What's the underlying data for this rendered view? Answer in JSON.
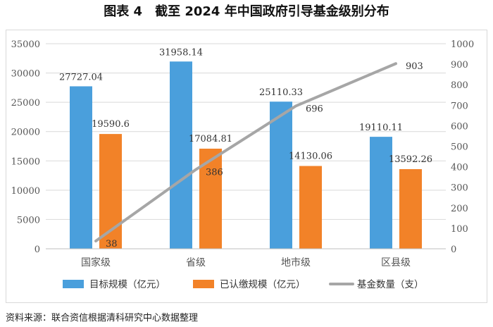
{
  "colors": {
    "bar1": "#4A9FDC",
    "bar2": "#F28228",
    "line": "#A6A6A6",
    "grid": "#D9D9D9",
    "axis": "#BFBFBF"
  },
  "chart_data": {
    "type": "bar",
    "title": "图表 4　截至 2024 年中国政府引导基金级别分布",
    "categories": [
      "国家级",
      "省级",
      "地市级",
      "区县级"
    ],
    "series": [
      {
        "name": "目标规模（亿元）",
        "kind": "bar",
        "axis": "left",
        "values": [
          27727.04,
          31958.14,
          25110.33,
          19110.11
        ],
        "labels": [
          "27727.04",
          "31958.14",
          "25110.33",
          "19110.11"
        ]
      },
      {
        "name": "已认缴规模（亿元）",
        "kind": "bar",
        "axis": "left",
        "values": [
          19590.6,
          17084.81,
          14130.06,
          13592.26
        ],
        "labels": [
          "19590.6",
          "17084.81",
          "14130.06",
          "13592.26"
        ]
      },
      {
        "name": "基金数量（支）",
        "kind": "line",
        "axis": "right",
        "values": [
          38,
          386,
          696,
          903
        ],
        "labels": [
          "38",
          "386",
          "696",
          "903"
        ]
      }
    ],
    "y_left": {
      "min": 0,
      "max": 35000,
      "ticks": [
        "0",
        "5000",
        "10000",
        "15000",
        "20000",
        "25000",
        "30000",
        "35000"
      ]
    },
    "y_right": {
      "min": 0,
      "max": 1000,
      "ticks": [
        "0",
        "100",
        "200",
        "300",
        "400",
        "500",
        "600",
        "700",
        "800",
        "900",
        "1000"
      ]
    },
    "legend_position": "bottom",
    "grid": true
  },
  "source": "资料来源：联合资信根据清科研究中心数据整理"
}
